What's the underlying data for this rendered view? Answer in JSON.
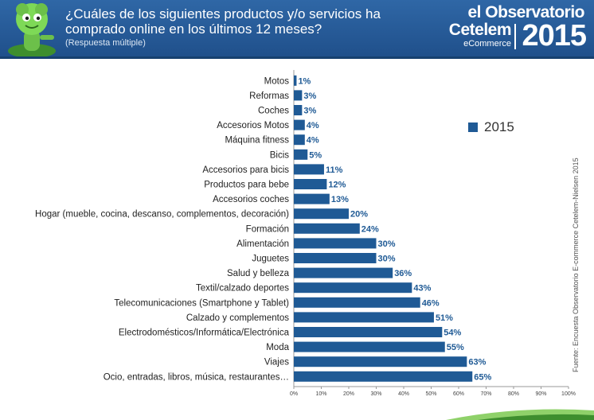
{
  "header": {
    "title_line1": "¿Cuáles de los siguientes productos y/o servicios ha",
    "title_line2": "comprado online en los últimos 12 meses?",
    "subtitle": "(Respuesta múltiple)",
    "brand_line1": "el Observatorio",
    "brand_line2": "Cetelem",
    "brand_line3": "eCommerce",
    "brand_year": "2015"
  },
  "legend": {
    "label": "2015"
  },
  "source": "Fuente: Encuesta Observatorio E-commerce Cetelem-Nielsen 2015",
  "colors": {
    "bar": "#1f5a95",
    "header": "#2a5f9e",
    "label_value": "#1f5a95"
  },
  "icons": {
    "mascot": "green-mascot-icon"
  },
  "chart_data": {
    "type": "bar",
    "orientation": "horizontal",
    "categories": [
      "Motos",
      "Reformas",
      "Coches",
      "Accesorios Motos",
      "Máquina fitness",
      "Bicis",
      "Accesorios para bicis",
      "Productos para bebe",
      "Accesorios coches",
      "Hogar (mueble, cocina, descanso, complementos, decoración)",
      "Formación",
      "Alimentación",
      "Juguetes",
      "Salud y belleza",
      "Textil/calzado deportes",
      "Telecomunicaciones (Smartphone y Tablet)",
      "Calzado y complementos",
      "Electrodomésticos/Informática/Electrónica",
      "Moda",
      "Viajes",
      "Ocio, entradas, libros, música, restaurantes…"
    ],
    "series": [
      {
        "name": "2015",
        "values": [
          1,
          3,
          3,
          4,
          4,
          5,
          11,
          12,
          13,
          20,
          24,
          30,
          30,
          36,
          43,
          46,
          51,
          54,
          55,
          63,
          65
        ]
      }
    ],
    "value_labels": [
      "1%",
      "3%",
      "3%",
      "4%",
      "4%",
      "5%",
      "11%",
      "12%",
      "13%",
      "20%",
      "24%",
      "30%",
      "30%",
      "36%",
      "43%",
      "46%",
      "51%",
      "54%",
      "55%",
      "63%",
      "65%"
    ],
    "xlim": [
      0,
      100
    ],
    "xticks": [
      0,
      10,
      20,
      30,
      40,
      50,
      60,
      70,
      80,
      90,
      100
    ],
    "xtick_labels": [
      "0%",
      "10%",
      "20%",
      "30%",
      "40%",
      "50%",
      "60%",
      "70%",
      "80%",
      "90%",
      "100%"
    ],
    "grid": false,
    "legend_position": "right"
  }
}
